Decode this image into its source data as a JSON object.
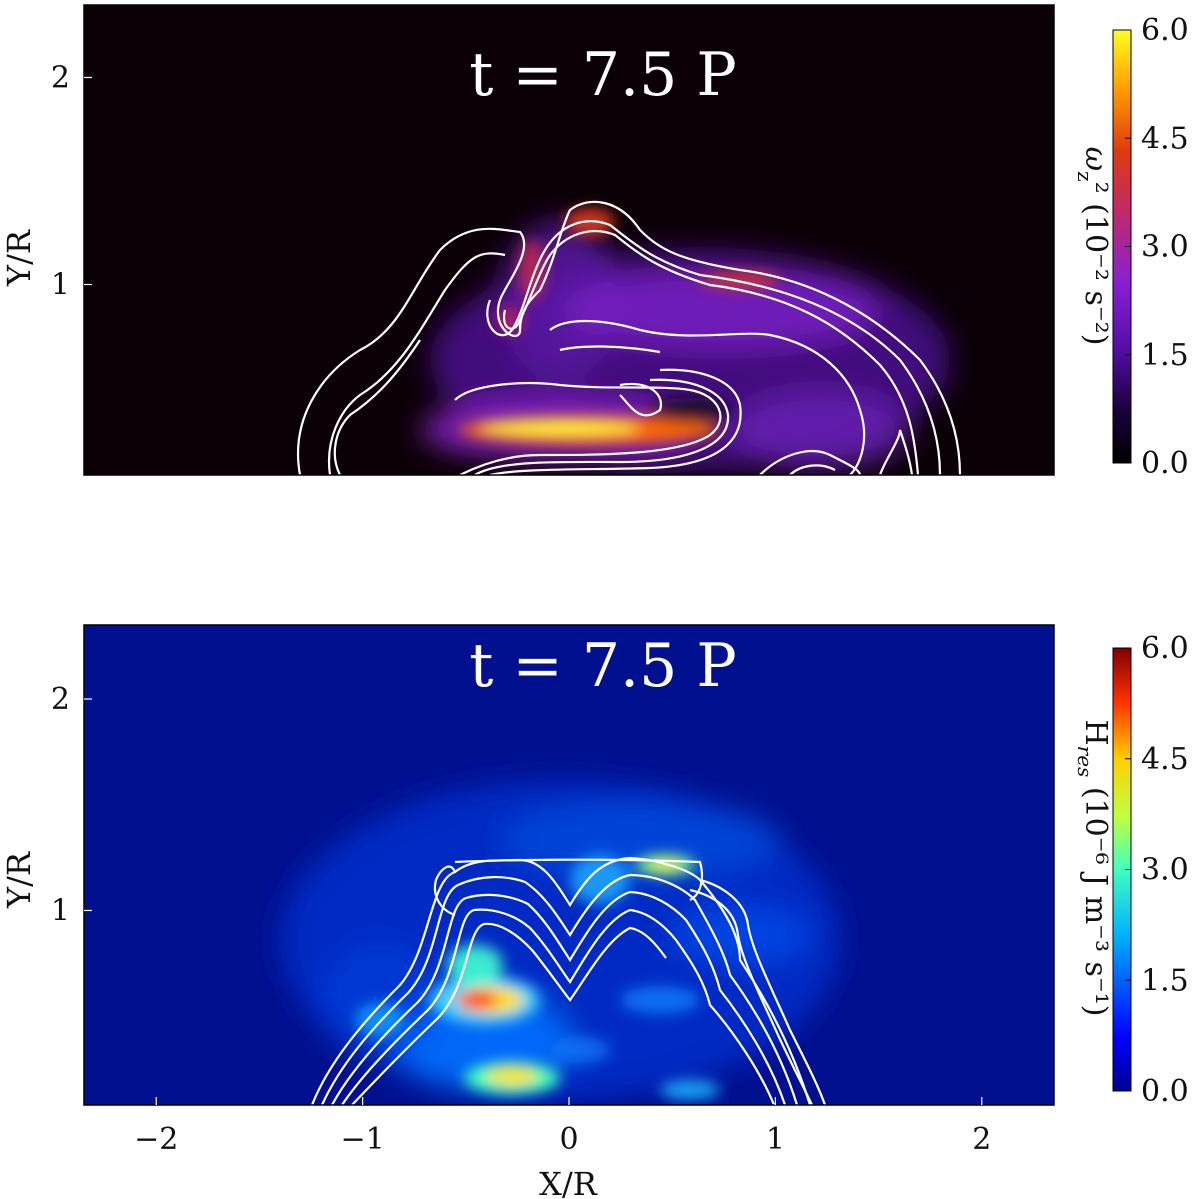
{
  "chart_data": [
    {
      "type": "heatmap",
      "title": "t = 7.5 P",
      "xlabel": "",
      "ylabel": "Y/R",
      "xlim": [
        -2.35,
        2.35
      ],
      "ylim": [
        0.08,
        2.35
      ],
      "yticks": [
        1,
        2
      ],
      "ytick_labels": [
        "1",
        "2"
      ],
      "xticks": [],
      "xtick_labels": [],
      "colorbar": {
        "label_main": "ω",
        "label_sub": "z",
        "label_rest": "² (10⁻² s⁻²)",
        "colormap": "gnuplot",
        "ticks": [
          0.0,
          1.5,
          3.0,
          4.5,
          6.0
        ],
        "tick_labels": [
          "0.0",
          "1.5",
          "3.0",
          "4.5",
          "6.0"
        ],
        "range": [
          0.0,
          6.0
        ]
      },
      "contours": "white"
    },
    {
      "type": "heatmap",
      "title": "t = 7.5 P",
      "xlabel": "X/R",
      "ylabel": "Y/R",
      "xlim": [
        -2.35,
        2.35
      ],
      "ylim": [
        0.08,
        2.35
      ],
      "yticks": [
        1,
        2
      ],
      "ytick_labels": [
        "1",
        "2"
      ],
      "xticks": [
        -2,
        -1,
        0,
        1,
        2
      ],
      "xtick_labels": [
        "−2",
        "−1",
        "0",
        "1",
        "2"
      ],
      "colorbar": {
        "label_main": "H",
        "label_sub": "res",
        "label_rest": " (10⁻⁶ J m⁻³ s⁻¹)",
        "colormap": "jet",
        "ticks": [
          0.0,
          1.5,
          3.0,
          4.5,
          6.0
        ],
        "tick_labels": [
          "0.0",
          "1.5",
          "3.0",
          "4.5",
          "6.0"
        ],
        "range": [
          0.0,
          6.0
        ]
      },
      "contours": "white"
    }
  ]
}
